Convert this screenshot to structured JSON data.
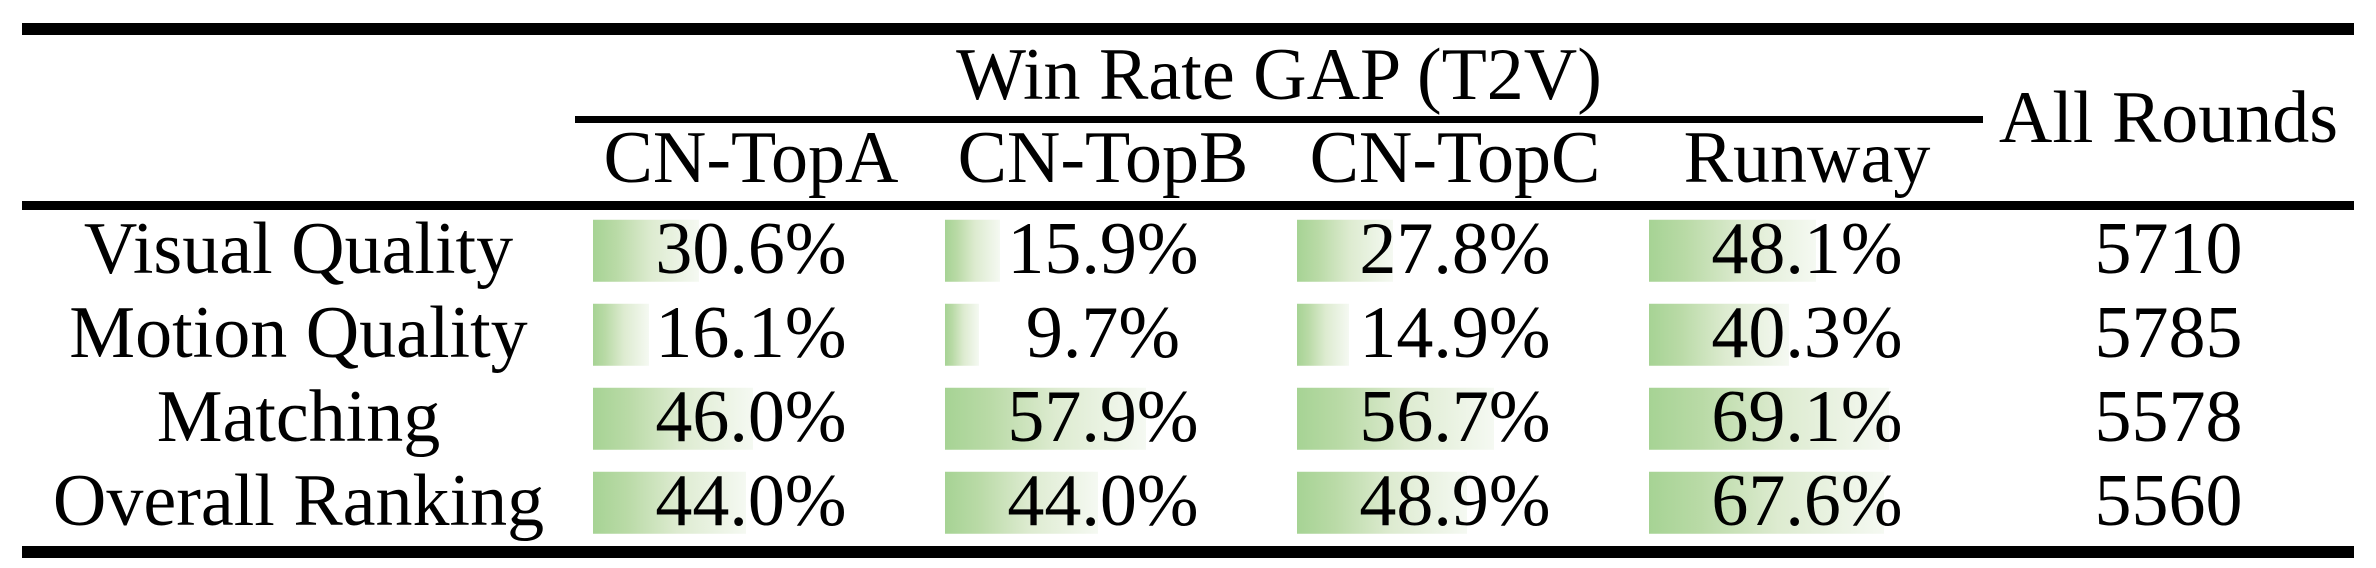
{
  "table": {
    "title": "Win Rate GAP (T2V)",
    "all_rounds_header": "All Rounds",
    "columns": [
      "CN-TopA",
      "CN-TopB",
      "CN-TopC",
      "Runway"
    ],
    "rows": [
      {
        "label": "Visual Quality",
        "cells": [
          {
            "text": "30.6%",
            "pct": 30.6
          },
          {
            "text": "15.9%",
            "pct": 15.9
          },
          {
            "text": "27.8%",
            "pct": 27.8
          },
          {
            "text": "48.1%",
            "pct": 48.1
          }
        ],
        "all_rounds": "5710"
      },
      {
        "label": "Motion Quality",
        "cells": [
          {
            "text": "16.1%",
            "pct": 16.1
          },
          {
            "text": "9.7%",
            "pct": 9.7
          },
          {
            "text": "14.9%",
            "pct": 14.9
          },
          {
            "text": "40.3%",
            "pct": 40.3
          }
        ],
        "all_rounds": "5785"
      },
      {
        "label": "Matching",
        "cells": [
          {
            "text": "46.0%",
            "pct": 46.0
          },
          {
            "text": "57.9%",
            "pct": 57.9
          },
          {
            "text": "56.7%",
            "pct": 56.7
          },
          {
            "text": "69.1%",
            "pct": 69.1
          }
        ],
        "all_rounds": "5578"
      },
      {
        "label": "Overall Ranking",
        "cells": [
          {
            "text": "44.0%",
            "pct": 44.0
          },
          {
            "text": "44.0%",
            "pct": 44.0
          },
          {
            "text": "48.9%",
            "pct": 48.9
          },
          {
            "text": "67.6%",
            "pct": 67.6
          }
        ],
        "all_rounds": "5560"
      }
    ],
    "colors": {
      "bar_gradient_start": "#a6d394",
      "bar_gradient_end": "#f5f9f2",
      "rule": "#000000",
      "text": "#000000"
    }
  }
}
